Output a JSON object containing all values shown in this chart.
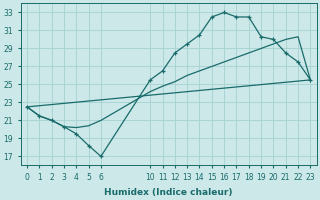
{
  "xlabel": "Humidex (Indice chaleur)",
  "bg_color": "#cce8e8",
  "grid_color": "#aad4d4",
  "line_color": "#1a6b6b",
  "ylim": [
    16,
    34
  ],
  "yticks": [
    17,
    19,
    21,
    23,
    25,
    27,
    29,
    31,
    33
  ],
  "xtick_positions": [
    0,
    1,
    2,
    3,
    4,
    5,
    6,
    10,
    11,
    12,
    13,
    14,
    15,
    16,
    17,
    18,
    19,
    20,
    21,
    22,
    23
  ],
  "xtick_labels": [
    "0",
    "1",
    "2",
    "3",
    "4",
    "5",
    "6",
    "10",
    "11",
    "12",
    "13",
    "14",
    "15",
    "16",
    "17",
    "18",
    "19",
    "20",
    "21",
    "22",
    "23"
  ],
  "curve1_x": [
    0,
    1,
    2,
    3,
    4,
    5,
    6,
    10,
    11,
    12,
    13,
    14,
    15,
    16,
    17,
    18,
    19,
    20,
    21,
    22,
    23
  ],
  "curve1_y": [
    22.5,
    21.5,
    21.0,
    20.3,
    19.5,
    18.2,
    17.0,
    25.5,
    26.5,
    28.5,
    29.5,
    30.5,
    32.5,
    33.0,
    32.5,
    32.5,
    30.3,
    30.0,
    28.5,
    27.5,
    25.5
  ],
  "curve2_x": [
    0,
    23
  ],
  "curve2_y": [
    22.5,
    25.5
  ],
  "curve3_x": [
    0,
    1,
    2,
    3,
    4,
    5,
    6,
    10,
    11,
    12,
    13,
    14,
    15,
    16,
    17,
    18,
    19,
    20,
    21,
    22,
    23
  ],
  "curve3_y": [
    22.5,
    21.5,
    21.0,
    20.3,
    20.2,
    20.4,
    21.0,
    24.2,
    24.8,
    25.3,
    26.0,
    26.5,
    27.0,
    27.5,
    28.0,
    28.5,
    29.0,
    29.5,
    30.0,
    30.3,
    25.5
  ],
  "xlabel_fontsize": 6.5,
  "tick_fontsize": 5.5,
  "tick_color": "#1a6b6b"
}
